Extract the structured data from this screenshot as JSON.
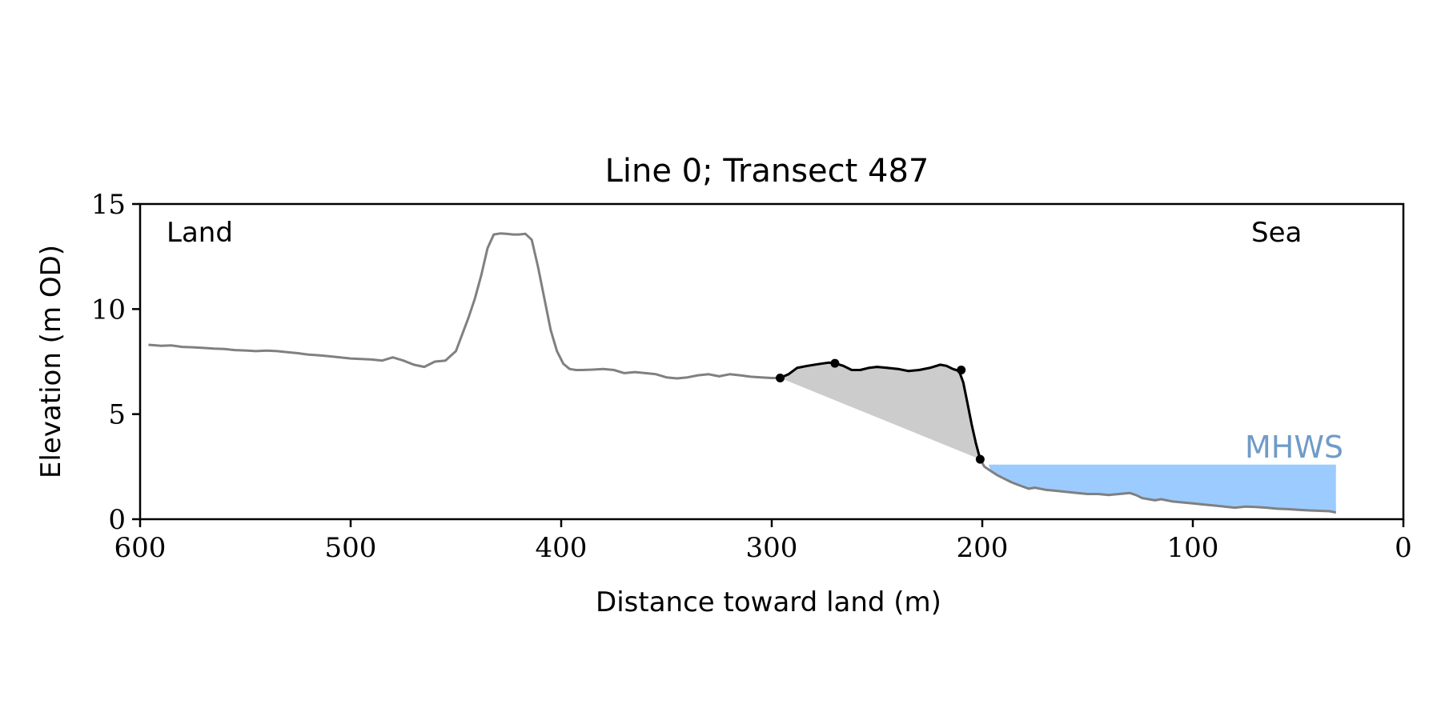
{
  "chart_data": {
    "type": "line",
    "title": "Line 0; Transect 487",
    "xlabel": "Distance toward land (m)",
    "ylabel": "Elevation (m OD)",
    "xlim": [
      600,
      0
    ],
    "ylim": [
      0,
      15
    ],
    "xticks": [
      600,
      500,
      400,
      300,
      200,
      100,
      0
    ],
    "yticks": [
      0,
      5,
      10,
      15
    ],
    "xtick_labels": [
      "600",
      "500",
      "400",
      "300",
      "200",
      "100",
      "0"
    ],
    "ytick_labels": [
      "0",
      "5",
      "10",
      "15"
    ],
    "grid": false,
    "annotations": {
      "land": "Land",
      "sea": "Sea",
      "mhws": "MHWS"
    },
    "colors": {
      "profile": "#808080",
      "dune": "#000000",
      "fill": "#cccccc",
      "water": "#9ccbff",
      "mhws_text": "#6f9bc8"
    },
    "mhws_level": 2.6,
    "water_x_range": [
      197,
      32
    ],
    "profile": {
      "x": [
        596,
        590,
        585,
        580,
        575,
        570,
        565,
        560,
        555,
        550,
        545,
        540,
        535,
        530,
        525,
        520,
        515,
        510,
        505,
        500,
        495,
        490,
        485,
        480,
        475,
        470,
        465,
        460,
        455,
        450,
        447,
        444,
        441,
        438,
        435,
        432,
        429,
        426,
        423,
        420,
        417,
        414,
        411,
        408,
        405,
        402,
        399,
        396,
        393,
        390,
        385,
        380,
        375,
        370,
        365,
        360,
        355,
        350,
        345,
        340,
        335,
        330,
        325,
        320,
        315,
        310,
        305,
        300,
        296,
        292,
        288,
        283,
        278,
        273,
        270,
        266,
        262,
        258,
        254,
        250,
        245,
        240,
        235,
        230,
        225,
        220,
        217,
        214,
        211,
        209,
        207,
        205,
        203,
        201,
        199,
        196,
        193,
        190,
        186,
        182,
        178,
        175,
        170,
        165,
        160,
        155,
        150,
        145,
        140,
        135,
        130,
        127,
        124,
        121,
        118,
        115,
        110,
        105,
        100,
        95,
        90,
        85,
        80,
        75,
        70,
        65,
        60,
        55,
        50,
        45,
        40,
        35,
        32
      ],
      "y": [
        8.3,
        8.25,
        8.27,
        8.2,
        8.18,
        8.15,
        8.12,
        8.1,
        8.05,
        8.03,
        8.0,
        8.02,
        8.0,
        7.95,
        7.9,
        7.83,
        7.8,
        7.75,
        7.7,
        7.65,
        7.62,
        7.6,
        7.55,
        7.7,
        7.55,
        7.35,
        7.25,
        7.5,
        7.55,
        8.0,
        8.8,
        9.6,
        10.5,
        11.6,
        12.9,
        13.55,
        13.6,
        13.58,
        13.55,
        13.55,
        13.58,
        13.3,
        12.0,
        10.5,
        9.0,
        8.0,
        7.4,
        7.15,
        7.1,
        7.1,
        7.12,
        7.15,
        7.1,
        6.95,
        7.0,
        6.95,
        6.9,
        6.75,
        6.7,
        6.75,
        6.85,
        6.9,
        6.8,
        6.9,
        6.85,
        6.78,
        6.75,
        6.72,
        6.72,
        6.9,
        7.2,
        7.3,
        7.38,
        7.45,
        7.42,
        7.3,
        7.1,
        7.1,
        7.2,
        7.25,
        7.2,
        7.15,
        7.05,
        7.1,
        7.2,
        7.35,
        7.3,
        7.15,
        7.05,
        6.5,
        5.5,
        4.5,
        3.6,
        2.85,
        2.5,
        2.3,
        2.1,
        1.95,
        1.75,
        1.6,
        1.45,
        1.5,
        1.4,
        1.35,
        1.3,
        1.25,
        1.2,
        1.2,
        1.15,
        1.2,
        1.25,
        1.15,
        1.0,
        0.95,
        0.9,
        0.95,
        0.85,
        0.8,
        0.75,
        0.7,
        0.65,
        0.6,
        0.55,
        0.6,
        0.58,
        0.55,
        0.5,
        0.48,
        0.45,
        0.42,
        0.4,
        0.38,
        0.32
      ]
    },
    "dune_line": {
      "x": [
        296,
        292,
        288,
        283,
        278,
        273,
        270,
        266,
        262,
        258,
        254,
        250,
        245,
        240,
        235,
        230,
        225,
        220,
        217,
        214,
        211,
        209,
        207,
        205,
        203,
        201
      ],
      "y": [
        6.72,
        6.9,
        7.2,
        7.3,
        7.38,
        7.45,
        7.42,
        7.3,
        7.1,
        7.1,
        7.2,
        7.25,
        7.2,
        7.15,
        7.05,
        7.1,
        7.2,
        7.35,
        7.3,
        7.15,
        7.05,
        6.5,
        5.5,
        4.5,
        3.6,
        2.85
      ]
    },
    "markers": {
      "x": [
        296,
        270,
        210,
        201
      ],
      "y": [
        6.72,
        7.42,
        7.1,
        2.85
      ]
    }
  }
}
